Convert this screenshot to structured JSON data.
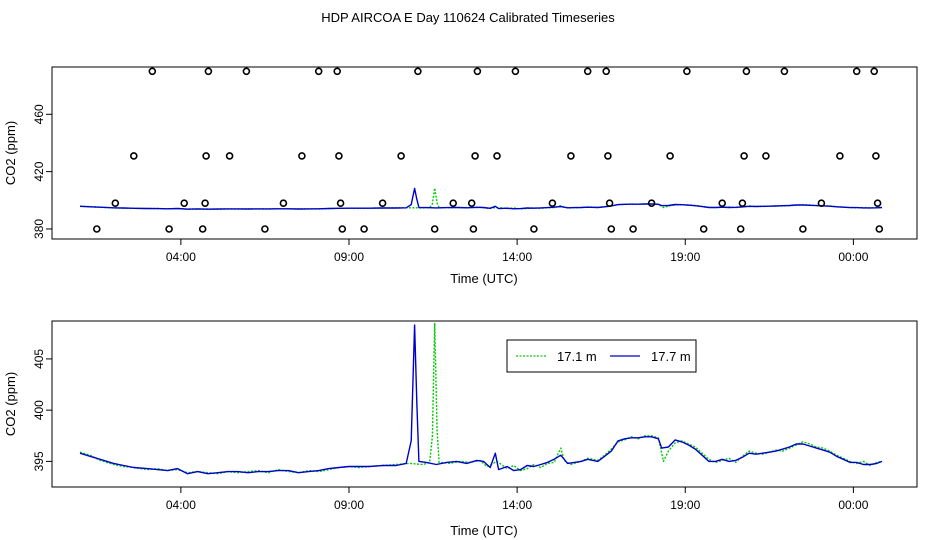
{
  "chart_data": {
    "title": "HDP AIRCOA E  Day 110624  Calibrated Timeseries",
    "panels": [
      {
        "type": "scatter+line",
        "xlabel": "Time (UTC)",
        "ylabel": "CO2 (ppm)",
        "xlim": [
          0,
          24
        ],
        "ylim": [
          373,
          493
        ],
        "xticks": [
          {
            "x": 3,
            "label": "04:00"
          },
          {
            "x": 8,
            "label": "09:00"
          },
          {
            "x": 13,
            "label": "14:00"
          },
          {
            "x": 18,
            "label": "19:00"
          },
          {
            "x": 23,
            "label": "00:00"
          }
        ],
        "yticks": [
          {
            "y": 380,
            "label": "380"
          },
          {
            "y": 420,
            "label": "420"
          },
          {
            "y": 460,
            "label": "460"
          }
        ],
        "grid": false,
        "calibration_points": [
          {
            "x": 0.5,
            "y": 380
          },
          {
            "x": 1.05,
            "y": 398
          },
          {
            "x": 1.6,
            "y": 431
          },
          {
            "x": 2.15,
            "y": 490
          },
          {
            "x": 2.65,
            "y": 380
          },
          {
            "x": 3.1,
            "y": 398
          },
          {
            "x": 3.65,
            "y": 380
          },
          {
            "x": 3.72,
            "y": 398
          },
          {
            "x": 3.75,
            "y": 431
          },
          {
            "x": 3.82,
            "y": 490
          },
          {
            "x": 4.45,
            "y": 431
          },
          {
            "x": 4.95,
            "y": 490
          },
          {
            "x": 5.5,
            "y": 380
          },
          {
            "x": 6.05,
            "y": 398
          },
          {
            "x": 6.6,
            "y": 431
          },
          {
            "x": 7.1,
            "y": 490
          },
          {
            "x": 7.65,
            "y": 490
          },
          {
            "x": 7.7,
            "y": 431
          },
          {
            "x": 7.75,
            "y": 398
          },
          {
            "x": 7.8,
            "y": 380
          },
          {
            "x": 8.45,
            "y": 380
          },
          {
            "x": 9.0,
            "y": 398
          },
          {
            "x": 9.55,
            "y": 431
          },
          {
            "x": 10.05,
            "y": 490
          },
          {
            "x": 10.55,
            "y": 380
          },
          {
            "x": 11.1,
            "y": 398
          },
          {
            "x": 11.65,
            "y": 398
          },
          {
            "x": 11.7,
            "y": 380
          },
          {
            "x": 11.75,
            "y": 431
          },
          {
            "x": 11.82,
            "y": 490
          },
          {
            "x": 12.4,
            "y": 431
          },
          {
            "x": 12.95,
            "y": 490
          },
          {
            "x": 13.5,
            "y": 380
          },
          {
            "x": 14.05,
            "y": 398
          },
          {
            "x": 14.6,
            "y": 431
          },
          {
            "x": 15.1,
            "y": 490
          },
          {
            "x": 15.65,
            "y": 490
          },
          {
            "x": 15.7,
            "y": 431
          },
          {
            "x": 15.75,
            "y": 398
          },
          {
            "x": 15.8,
            "y": 380
          },
          {
            "x": 16.45,
            "y": 380
          },
          {
            "x": 17.0,
            "y": 398
          },
          {
            "x": 17.55,
            "y": 431
          },
          {
            "x": 18.05,
            "y": 490
          },
          {
            "x": 18.55,
            "y": 380
          },
          {
            "x": 19.1,
            "y": 398
          },
          {
            "x": 19.65,
            "y": 380
          },
          {
            "x": 19.7,
            "y": 398
          },
          {
            "x": 19.75,
            "y": 431
          },
          {
            "x": 19.82,
            "y": 490
          },
          {
            "x": 20.4,
            "y": 431
          },
          {
            "x": 20.95,
            "y": 490
          },
          {
            "x": 21.5,
            "y": 380
          },
          {
            "x": 22.05,
            "y": 398
          },
          {
            "x": 22.6,
            "y": 431
          },
          {
            "x": 23.1,
            "y": 490
          },
          {
            "x": 23.62,
            "y": 490
          },
          {
            "x": 23.67,
            "y": 431
          },
          {
            "x": 23.72,
            "y": 398
          },
          {
            "x": 23.77,
            "y": 380
          }
        ]
      },
      {
        "type": "line",
        "xlabel": "Time (UTC)",
        "ylabel": "CO2 (ppm)",
        "xlim": [
          0,
          24
        ],
        "ylim": [
          392.5,
          408.7
        ],
        "xticks": [
          {
            "x": 3,
            "label": "04:00"
          },
          {
            "x": 8,
            "label": "09:00"
          },
          {
            "x": 13,
            "label": "14:00"
          },
          {
            "x": 18,
            "label": "19:00"
          },
          {
            "x": 23,
            "label": "00:00"
          }
        ],
        "yticks": [
          {
            "y": 395,
            "label": "395"
          },
          {
            "y": 400,
            "label": "400"
          },
          {
            "y": 405,
            "label": "405"
          }
        ],
        "grid": false,
        "legend_position": "top-center"
      }
    ],
    "series": [
      {
        "name": "17.1 m",
        "color": "#00cc00",
        "dashed": true,
        "points": [
          [
            0.0,
            395.9
          ],
          [
            0.3,
            395.6
          ],
          [
            0.6,
            395.1
          ],
          [
            1.0,
            394.7
          ],
          [
            1.3,
            394.5
          ],
          [
            1.6,
            394.4
          ],
          [
            2.0,
            394.2
          ],
          [
            2.3,
            394.3
          ],
          [
            2.6,
            394.1
          ],
          [
            2.9,
            394.2
          ],
          [
            3.2,
            393.9
          ],
          [
            3.5,
            394.0
          ],
          [
            3.8,
            393.9
          ],
          [
            4.1,
            393.8
          ],
          [
            4.4,
            394.0
          ],
          [
            4.7,
            393.9
          ],
          [
            5.0,
            394.0
          ],
          [
            5.3,
            394.1
          ],
          [
            5.6,
            393.9
          ],
          [
            5.9,
            394.2
          ],
          [
            6.2,
            394.0
          ],
          [
            6.5,
            393.9
          ],
          [
            6.8,
            394.1
          ],
          [
            7.1,
            394.0
          ],
          [
            7.4,
            394.2
          ],
          [
            7.7,
            394.4
          ],
          [
            8.0,
            394.5
          ],
          [
            8.3,
            394.4
          ],
          [
            8.6,
            394.5
          ],
          [
            9.0,
            394.6
          ],
          [
            9.4,
            394.7
          ],
          [
            9.8,
            394.8
          ],
          [
            10.2,
            394.7
          ],
          [
            10.4,
            394.9
          ],
          [
            10.48,
            397.5
          ],
          [
            10.55,
            408.5
          ],
          [
            10.62,
            398.0
          ],
          [
            10.68,
            394.9
          ],
          [
            11.0,
            394.8
          ],
          [
            11.3,
            395.0
          ],
          [
            11.6,
            394.9
          ],
          [
            11.9,
            395.1
          ],
          [
            12.1,
            394.5
          ],
          [
            12.4,
            395.0
          ],
          [
            12.7,
            394.3
          ],
          [
            12.9,
            394.6
          ],
          [
            13.1,
            394.1
          ],
          [
            13.3,
            394.3
          ],
          [
            13.5,
            394.7
          ],
          [
            13.7,
            394.4
          ],
          [
            13.9,
            394.8
          ],
          [
            14.1,
            394.9
          ],
          [
            14.3,
            396.3
          ],
          [
            14.4,
            395.1
          ],
          [
            14.6,
            394.7
          ],
          [
            14.9,
            395.0
          ],
          [
            15.1,
            395.3
          ],
          [
            15.4,
            395.1
          ],
          [
            15.6,
            395.6
          ],
          [
            15.8,
            396.2
          ],
          [
            16.0,
            396.9
          ],
          [
            16.2,
            397.1
          ],
          [
            16.4,
            397.4
          ],
          [
            16.6,
            397.2
          ],
          [
            16.8,
            397.5
          ],
          [
            17.0,
            397.5
          ],
          [
            17.2,
            397.3
          ],
          [
            17.35,
            395.0
          ],
          [
            17.5,
            396.0
          ],
          [
            17.7,
            396.8
          ],
          [
            17.9,
            397.0
          ],
          [
            18.1,
            396.7
          ],
          [
            18.3,
            396.4
          ],
          [
            18.5,
            395.8
          ],
          [
            18.7,
            395.2
          ],
          [
            18.9,
            394.9
          ],
          [
            19.1,
            395.1
          ],
          [
            19.3,
            395.3
          ],
          [
            19.5,
            394.9
          ],
          [
            19.7,
            395.5
          ],
          [
            19.9,
            396.0
          ],
          [
            20.1,
            395.8
          ],
          [
            20.3,
            395.7
          ],
          [
            20.5,
            395.9
          ],
          [
            20.7,
            396.1
          ],
          [
            20.9,
            396.0
          ],
          [
            21.1,
            396.3
          ],
          [
            21.3,
            396.6
          ],
          [
            21.5,
            396.9
          ],
          [
            21.7,
            396.7
          ],
          [
            21.9,
            396.4
          ],
          [
            22.1,
            396.3
          ],
          [
            22.3,
            396.0
          ],
          [
            22.5,
            395.6
          ],
          [
            22.7,
            395.3
          ],
          [
            22.9,
            395.0
          ],
          [
            23.1,
            394.8
          ],
          [
            23.3,
            395.0
          ],
          [
            23.5,
            394.6
          ],
          [
            23.7,
            394.9
          ],
          [
            23.85,
            395.0
          ]
        ]
      },
      {
        "name": "17.7 m",
        "color": "#0000cc",
        "dashed": false,
        "points": [
          [
            0.0,
            395.8
          ],
          [
            0.3,
            395.5
          ],
          [
            0.6,
            395.2
          ],
          [
            1.0,
            394.8
          ],
          [
            1.3,
            394.6
          ],
          [
            1.6,
            394.4
          ],
          [
            2.0,
            394.3
          ],
          [
            2.3,
            394.2
          ],
          [
            2.6,
            394.1
          ],
          [
            2.9,
            394.3
          ],
          [
            3.2,
            393.8
          ],
          [
            3.5,
            394.0
          ],
          [
            3.8,
            393.8
          ],
          [
            4.1,
            393.9
          ],
          [
            4.4,
            394.0
          ],
          [
            4.7,
            394.0
          ],
          [
            5.0,
            393.9
          ],
          [
            5.3,
            394.0
          ],
          [
            5.6,
            394.0
          ],
          [
            5.9,
            394.1
          ],
          [
            6.2,
            394.1
          ],
          [
            6.5,
            393.9
          ],
          [
            6.8,
            394.0
          ],
          [
            7.1,
            394.1
          ],
          [
            7.4,
            394.3
          ],
          [
            7.7,
            394.4
          ],
          [
            8.0,
            394.5
          ],
          [
            8.3,
            394.5
          ],
          [
            8.6,
            394.5
          ],
          [
            9.0,
            394.6
          ],
          [
            9.4,
            394.6
          ],
          [
            9.7,
            394.8
          ],
          [
            9.85,
            397.0
          ],
          [
            9.95,
            408.3
          ],
          [
            10.02,
            400.5
          ],
          [
            10.08,
            395.0
          ],
          [
            10.3,
            394.9
          ],
          [
            10.6,
            394.7
          ],
          [
            10.9,
            394.9
          ],
          [
            11.2,
            395.0
          ],
          [
            11.5,
            394.8
          ],
          [
            11.8,
            395.1
          ],
          [
            12.0,
            395.0
          ],
          [
            12.2,
            394.4
          ],
          [
            12.35,
            395.8
          ],
          [
            12.45,
            394.2
          ],
          [
            12.7,
            394.5
          ],
          [
            12.9,
            394.1
          ],
          [
            13.1,
            394.2
          ],
          [
            13.3,
            394.6
          ],
          [
            13.5,
            394.5
          ],
          [
            13.7,
            394.7
          ],
          [
            13.9,
            394.9
          ],
          [
            14.1,
            395.2
          ],
          [
            14.3,
            395.6
          ],
          [
            14.5,
            394.8
          ],
          [
            14.7,
            394.9
          ],
          [
            14.9,
            395.0
          ],
          [
            15.1,
            395.2
          ],
          [
            15.4,
            395.0
          ],
          [
            15.6,
            395.5
          ],
          [
            15.8,
            396.0
          ],
          [
            16.0,
            397.0
          ],
          [
            16.2,
            397.2
          ],
          [
            16.4,
            397.3
          ],
          [
            16.6,
            397.3
          ],
          [
            16.8,
            397.4
          ],
          [
            17.0,
            397.4
          ],
          [
            17.2,
            397.2
          ],
          [
            17.3,
            396.3
          ],
          [
            17.5,
            396.4
          ],
          [
            17.7,
            397.1
          ],
          [
            17.9,
            396.9
          ],
          [
            18.1,
            396.6
          ],
          [
            18.3,
            396.2
          ],
          [
            18.5,
            395.6
          ],
          [
            18.7,
            395.0
          ],
          [
            18.9,
            395.0
          ],
          [
            19.1,
            395.2
          ],
          [
            19.3,
            395.0
          ],
          [
            19.5,
            395.1
          ],
          [
            19.7,
            395.4
          ],
          [
            19.9,
            395.8
          ],
          [
            20.1,
            395.7
          ],
          [
            20.3,
            395.8
          ],
          [
            20.5,
            395.9
          ],
          [
            20.7,
            396.0
          ],
          [
            20.9,
            396.2
          ],
          [
            21.1,
            396.4
          ],
          [
            21.3,
            396.7
          ],
          [
            21.5,
            396.7
          ],
          [
            21.7,
            396.5
          ],
          [
            21.9,
            396.3
          ],
          [
            22.1,
            396.1
          ],
          [
            22.3,
            395.9
          ],
          [
            22.5,
            395.5
          ],
          [
            22.7,
            395.2
          ],
          [
            22.9,
            394.9
          ],
          [
            23.1,
            394.9
          ],
          [
            23.3,
            394.7
          ],
          [
            23.5,
            394.7
          ],
          [
            23.7,
            394.8
          ],
          [
            23.85,
            395.0
          ]
        ]
      }
    ]
  }
}
